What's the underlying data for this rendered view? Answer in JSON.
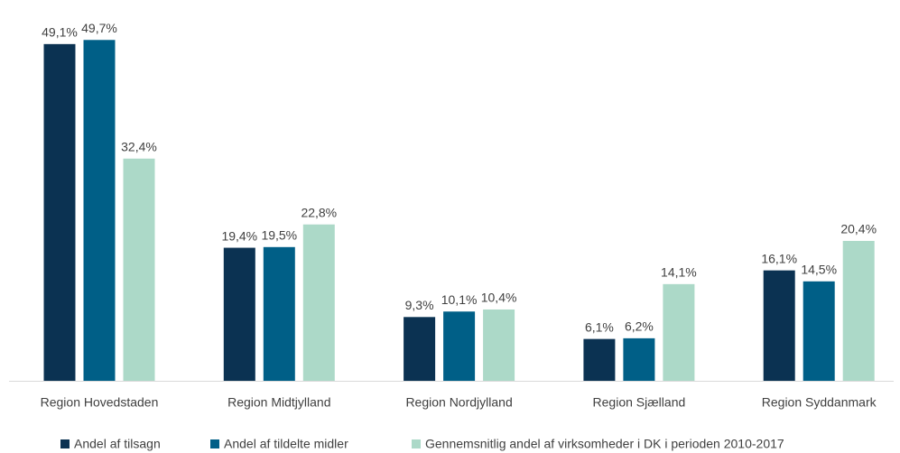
{
  "chart_data": {
    "type": "bar",
    "categories": [
      "Region Hovedstaden",
      "Region Midtjylland",
      "Region Nordjylland",
      "Region Sjælland",
      "Region Syddanmark"
    ],
    "series": [
      {
        "name": "Andel af tilsagn",
        "color": "#0b3252",
        "values": [
          49.1,
          19.4,
          9.3,
          6.1,
          16.1
        ],
        "value_labels": [
          "49,1%",
          "19,4%",
          "9,3%",
          "6,1%",
          "16,1%"
        ]
      },
      {
        "name": "Andel af tildelte midler",
        "color": "#005f87",
        "values": [
          49.7,
          19.5,
          10.1,
          6.2,
          14.5
        ],
        "value_labels": [
          "49,7%",
          "19,5%",
          "10,1%",
          "6,2%",
          "14,5%"
        ]
      },
      {
        "name": "Gennemsnitlig andel af virksomheder i DK i perioden 2010-2017",
        "color": "#acd9c8",
        "values": [
          32.4,
          22.8,
          10.4,
          14.1,
          20.4
        ],
        "value_labels": [
          "32,4%",
          "22,8%",
          "10,4%",
          "14,1%",
          "20,4%"
        ]
      }
    ]
  }
}
